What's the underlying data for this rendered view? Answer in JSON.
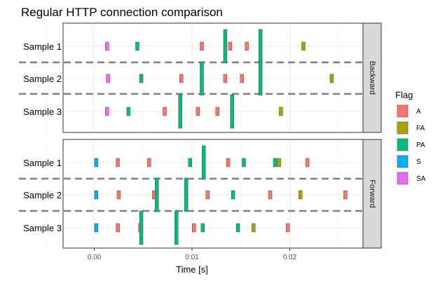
{
  "chart_data": {
    "type": "bar",
    "title": "Regular HTTP connection comparison",
    "xlabel": "Time [s]",
    "x_ticks": [
      "0.00",
      "0.01",
      "0.02"
    ],
    "xlim": [
      -0.0032,
      0.0275
    ],
    "legend_title": "Flag",
    "legend_position": "right",
    "flags": [
      "A",
      "FA",
      "PA",
      "S",
      "SA"
    ],
    "colors": {
      "A": "#F8766D",
      "FA": "#A3A500",
      "PA": "#00BF7D",
      "S": "#00B0F6",
      "SA": "#E76BF3"
    },
    "samples": [
      "Sample 1",
      "Sample 2",
      "Sample 3"
    ],
    "panels": [
      {
        "label": "Backward",
        "rows": [
          {
            "sample": "Sample 1",
            "packets": [
              {
                "t": 0.0013,
                "flag": "SA"
              },
              {
                "t": 0.0044,
                "flag": "PA"
              },
              {
                "t": 0.011,
                "flag": "A"
              },
              {
                "t": 0.0134,
                "flag": "PA",
                "tall": true
              },
              {
                "t": 0.0139,
                "flag": "A"
              },
              {
                "t": 0.0156,
                "flag": "A"
              },
              {
                "t": 0.017,
                "flag": "PA",
                "tall": true
              },
              {
                "t": 0.0214,
                "flag": "FA"
              }
            ]
          },
          {
            "sample": "Sample 2",
            "packets": [
              {
                "t": 0.0014,
                "flag": "SA"
              },
              {
                "t": 0.0048,
                "flag": "PA"
              },
              {
                "t": 0.0089,
                "flag": "A"
              },
              {
                "t": 0.011,
                "flag": "PA",
                "tall": true
              },
              {
                "t": 0.0134,
                "flag": "A"
              },
              {
                "t": 0.0151,
                "flag": "A"
              },
              {
                "t": 0.017,
                "flag": "PA",
                "tall": true
              },
              {
                "t": 0.0243,
                "flag": "FA"
              }
            ]
          },
          {
            "sample": "Sample 3",
            "packets": [
              {
                "t": 0.0013,
                "flag": "SA"
              },
              {
                "t": 0.0035,
                "flag": "PA"
              },
              {
                "t": 0.0072,
                "flag": "A"
              },
              {
                "t": 0.0088,
                "flag": "PA",
                "tall": true
              },
              {
                "t": 0.0106,
                "flag": "A"
              },
              {
                "t": 0.0126,
                "flag": "A"
              },
              {
                "t": 0.0141,
                "flag": "PA",
                "tall": true
              },
              {
                "t": 0.0191,
                "flag": "FA"
              }
            ]
          }
        ]
      },
      {
        "label": "Forward",
        "rows": [
          {
            "sample": "Sample 1",
            "packets": [
              {
                "t": 0.0002,
                "flag": "S"
              },
              {
                "t": 0.0024,
                "flag": "A"
              },
              {
                "t": 0.0056,
                "flag": "A"
              },
              {
                "t": 0.0098,
                "flag": "PA"
              },
              {
                "t": 0.0112,
                "flag": "PA",
                "tall": true
              },
              {
                "t": 0.0137,
                "flag": "A"
              },
              {
                "t": 0.0153,
                "flag": "PA"
              },
              {
                "t": 0.0185,
                "flag": "PA"
              },
              {
                "t": 0.0189,
                "flag": "FA"
              },
              {
                "t": 0.0218,
                "flag": "A"
              }
            ]
          },
          {
            "sample": "Sample 2",
            "packets": [
              {
                "t": 0.0002,
                "flag": "S"
              },
              {
                "t": 0.0025,
                "flag": "A"
              },
              {
                "t": 0.0061,
                "flag": "A"
              },
              {
                "t": 0.0064,
                "flag": "PA",
                "tall": true
              },
              {
                "t": 0.0094,
                "flag": "PA",
                "tall": true
              },
              {
                "t": 0.0116,
                "flag": "A"
              },
              {
                "t": 0.0142,
                "flag": "PA"
              },
              {
                "t": 0.018,
                "flag": "A"
              },
              {
                "t": 0.0211,
                "flag": "FA"
              },
              {
                "t": 0.0257,
                "flag": "A"
              }
            ]
          },
          {
            "sample": "Sample 3",
            "packets": [
              {
                "t": 0.0002,
                "flag": "S"
              },
              {
                "t": 0.0024,
                "flag": "A"
              },
              {
                "t": 0.0047,
                "flag": "A"
              },
              {
                "t": 0.0048,
                "flag": "PA",
                "tall": true
              },
              {
                "t": 0.0084,
                "flag": "PA",
                "tall": true
              },
              {
                "t": 0.0102,
                "flag": "A"
              },
              {
                "t": 0.0111,
                "flag": "PA"
              },
              {
                "t": 0.0147,
                "flag": "PA"
              },
              {
                "t": 0.0163,
                "flag": "FA"
              },
              {
                "t": 0.0198,
                "flag": "A"
              }
            ]
          }
        ]
      }
    ]
  }
}
